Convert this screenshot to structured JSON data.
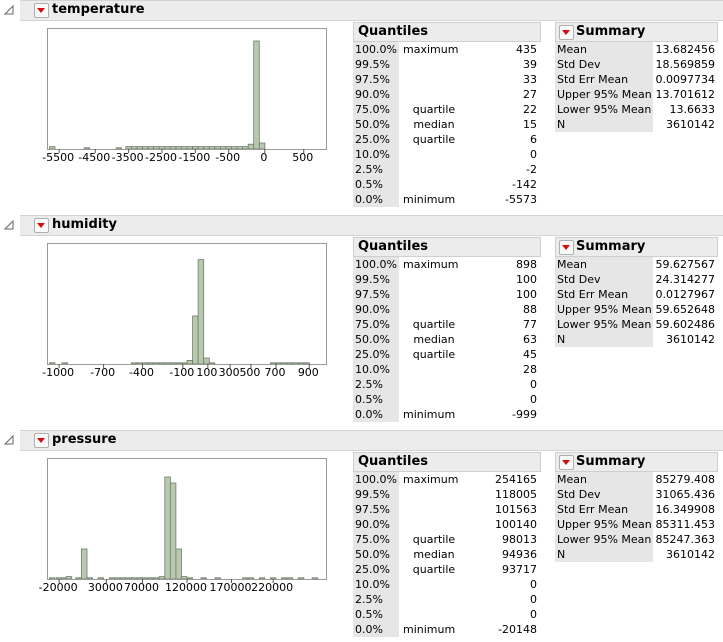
{
  "sections": [
    {
      "name": "temperature",
      "axis_labels": [
        "-5500",
        "-4500",
        "-3500",
        "-2500",
        "-1500",
        "-500",
        "0",
        "500"
      ],
      "bars": [
        [
          0.005,
          0.02
        ],
        [
          0.13,
          0.01
        ],
        [
          0.245,
          0.01
        ],
        [
          0.28,
          0.02
        ],
        [
          0.3,
          0.02
        ],
        [
          0.32,
          0.02
        ],
        [
          0.34,
          0.02
        ],
        [
          0.36,
          0.02
        ],
        [
          0.38,
          0.02
        ],
        [
          0.4,
          0.02
        ],
        [
          0.42,
          0.02
        ],
        [
          0.44,
          0.02
        ],
        [
          0.46,
          0.02
        ],
        [
          0.48,
          0.02
        ],
        [
          0.5,
          0.02
        ],
        [
          0.52,
          0.02
        ],
        [
          0.54,
          0.02
        ],
        [
          0.56,
          0.02
        ],
        [
          0.58,
          0.02
        ],
        [
          0.6,
          0.02
        ],
        [
          0.62,
          0.02
        ],
        [
          0.64,
          0.02
        ],
        [
          0.66,
          0.02
        ],
        [
          0.68,
          0.02
        ],
        [
          0.7,
          0.02
        ],
        [
          0.72,
          0.04
        ],
        [
          0.74,
          0.9
        ],
        [
          0.76,
          0.05
        ]
      ],
      "quantiles": {
        "title": "Quantiles",
        "rows": [
          [
            "100.0%",
            "maximum",
            "435"
          ],
          [
            "99.5%",
            "",
            "39"
          ],
          [
            "97.5%",
            "",
            "33"
          ],
          [
            "90.0%",
            "",
            "27"
          ],
          [
            "75.0%",
            "quartile",
            "22"
          ],
          [
            "50.0%",
            "median",
            "15"
          ],
          [
            "25.0%",
            "quartile",
            "6"
          ],
          [
            "10.0%",
            "",
            "0"
          ],
          [
            "2.5%",
            "",
            "-2"
          ],
          [
            "0.5%",
            "",
            "-142"
          ],
          [
            "0.0%",
            "minimum",
            "-5573"
          ]
        ]
      },
      "summary": {
        "title": "Summary Statistics",
        "rows": [
          [
            "Mean",
            "13.682456"
          ],
          [
            "Std Dev",
            "18.569859"
          ],
          [
            "Std Err Mean",
            "0.0097734"
          ],
          [
            "Upper 95% Mean",
            "13.701612"
          ],
          [
            "Lower 95% Mean",
            "13.6633"
          ],
          [
            "N",
            "3610142"
          ]
        ]
      }
    },
    {
      "name": "humidity",
      "axis_labels": [
        "-1000",
        "-700",
        "-400",
        "-100",
        "100",
        "300",
        "500",
        "700",
        "900"
      ],
      "bars": [
        [
          0.005,
          0.01
        ],
        [
          0.05,
          0.01
        ],
        [
          0.3,
          0.01
        ],
        [
          0.32,
          0.01
        ],
        [
          0.34,
          0.01
        ],
        [
          0.36,
          0.01
        ],
        [
          0.38,
          0.01
        ],
        [
          0.4,
          0.01
        ],
        [
          0.42,
          0.01
        ],
        [
          0.44,
          0.01
        ],
        [
          0.46,
          0.01
        ],
        [
          0.48,
          0.01
        ],
        [
          0.5,
          0.03
        ],
        [
          0.52,
          0.4
        ],
        [
          0.54,
          0.87
        ],
        [
          0.56,
          0.05
        ],
        [
          0.58,
          0.01
        ],
        [
          0.8,
          0.01
        ],
        [
          0.82,
          0.01
        ],
        [
          0.84,
          0.01
        ],
        [
          0.86,
          0.01
        ],
        [
          0.88,
          0.01
        ],
        [
          0.9,
          0.01
        ],
        [
          0.92,
          0.01
        ]
      ],
      "quantiles": {
        "title": "Quantiles",
        "rows": [
          [
            "100.0%",
            "maximum",
            "898"
          ],
          [
            "99.5%",
            "",
            "100"
          ],
          [
            "97.5%",
            "",
            "100"
          ],
          [
            "90.0%",
            "",
            "88"
          ],
          [
            "75.0%",
            "quartile",
            "77"
          ],
          [
            "50.0%",
            "median",
            "63"
          ],
          [
            "25.0%",
            "quartile",
            "45"
          ],
          [
            "10.0%",
            "",
            "28"
          ],
          [
            "2.5%",
            "",
            "0"
          ],
          [
            "0.5%",
            "",
            "0"
          ],
          [
            "0.0%",
            "minimum",
            "-999"
          ]
        ]
      },
      "summary": {
        "title": "Summary Statistics",
        "rows": [
          [
            "Mean",
            "59.627567"
          ],
          [
            "Std Dev",
            "24.314277"
          ],
          [
            "Std Err Mean",
            "0.0127967"
          ],
          [
            "Upper 95% Mean",
            "59.652648"
          ],
          [
            "Lower 95% Mean",
            "59.602486"
          ],
          [
            "N",
            "3610142"
          ]
        ]
      }
    },
    {
      "name": "pressure",
      "axis_labels": [
        "-20000",
        "30000",
        "70000",
        "120000",
        "170000",
        "220000"
      ],
      "bars": [
        [
          0.005,
          0.01
        ],
        [
          0.03,
          0.01
        ],
        [
          0.05,
          0.01
        ],
        [
          0.065,
          0.02
        ],
        [
          0.1,
          0.01
        ],
        [
          0.12,
          0.25
        ],
        [
          0.14,
          0.01
        ],
        [
          0.18,
          0.01
        ],
        [
          0.22,
          0.01
        ],
        [
          0.24,
          0.01
        ],
        [
          0.26,
          0.01
        ],
        [
          0.28,
          0.01
        ],
        [
          0.3,
          0.01
        ],
        [
          0.32,
          0.01
        ],
        [
          0.34,
          0.01
        ],
        [
          0.36,
          0.01
        ],
        [
          0.38,
          0.01
        ],
        [
          0.4,
          0.02
        ],
        [
          0.42,
          0.85
        ],
        [
          0.44,
          0.8
        ],
        [
          0.46,
          0.25
        ],
        [
          0.48,
          0.02
        ],
        [
          0.5,
          0.01
        ],
        [
          0.55,
          0.01
        ],
        [
          0.6,
          0.01
        ],
        [
          0.7,
          0.01
        ],
        [
          0.72,
          0.01
        ],
        [
          0.76,
          0.01
        ],
        [
          0.8,
          0.01
        ],
        [
          0.84,
          0.01
        ],
        [
          0.86,
          0.01
        ],
        [
          0.9,
          0.01
        ],
        [
          0.95,
          0.01
        ]
      ],
      "quantiles": {
        "title": "Quantiles",
        "rows": [
          [
            "100.0%",
            "maximum",
            "254165"
          ],
          [
            "99.5%",
            "",
            "118005"
          ],
          [
            "97.5%",
            "",
            "101563"
          ],
          [
            "90.0%",
            "",
            "100140"
          ],
          [
            "75.0%",
            "quartile",
            "98013"
          ],
          [
            "50.0%",
            "median",
            "94936"
          ],
          [
            "25.0%",
            "quartile",
            "93717"
          ],
          [
            "10.0%",
            "",
            "0"
          ],
          [
            "2.5%",
            "",
            "0"
          ],
          [
            "0.5%",
            "",
            "0"
          ],
          [
            "0.0%",
            "minimum",
            "-20148"
          ]
        ]
      },
      "summary": {
        "title": "Summary Statistics",
        "rows": [
          [
            "Mean",
            "85279.408"
          ],
          [
            "Std Dev",
            "31065.436"
          ],
          [
            "Std Err Mean",
            "16.349908"
          ],
          [
            "Upper 95% Mean",
            "85311.453"
          ],
          [
            "Lower 95% Mean",
            "85247.363"
          ],
          [
            "N",
            "3610142"
          ]
        ]
      }
    }
  ],
  "colors": {
    "bar": "#b8c9b0",
    "bar_border": "#6e7d68",
    "header_bg": "#ececec",
    "label_bg": "#e6e6e6",
    "accent": "#d01010"
  }
}
